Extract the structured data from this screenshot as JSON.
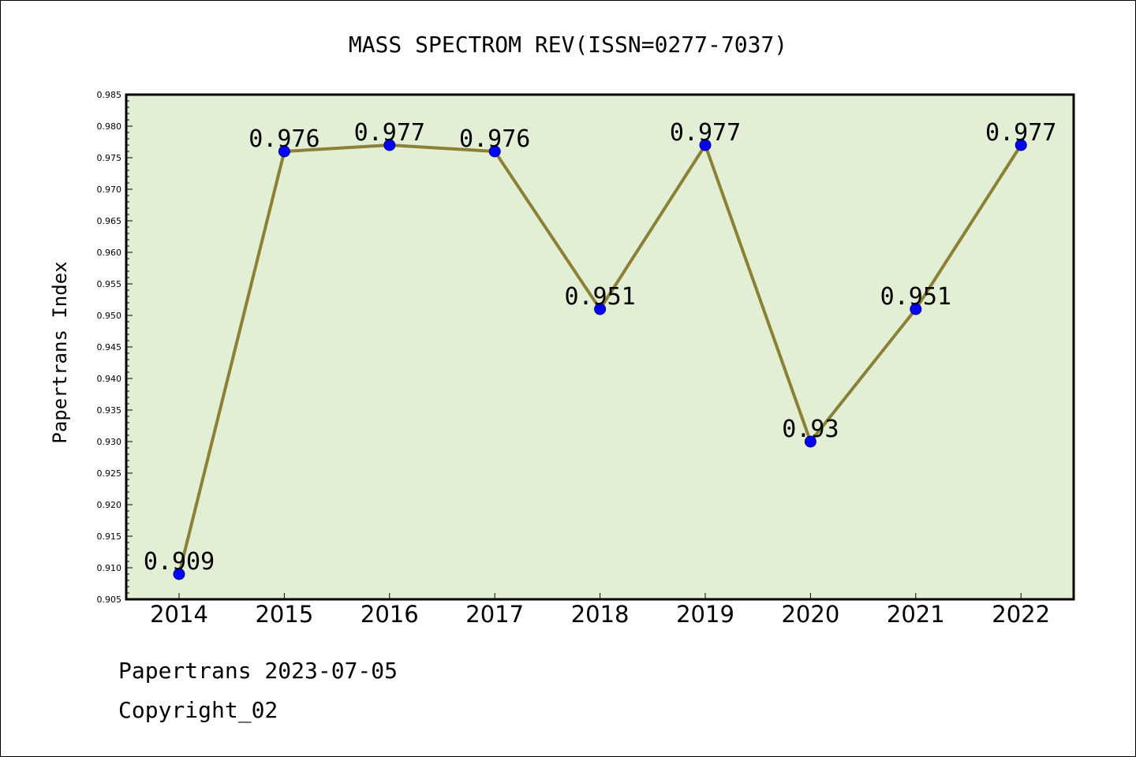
{
  "chart_data": {
    "type": "line",
    "title": "MASS SPECTROM REV(ISSN=0277-7037)",
    "ylabel": "Papertrans Index",
    "xlabel": "",
    "categories": [
      "2014",
      "2015",
      "2016",
      "2017",
      "2018",
      "2019",
      "2020",
      "2021",
      "2022"
    ],
    "series": [
      {
        "values": [
          0.909,
          0.976,
          0.977,
          0.976,
          0.951,
          0.977,
          0.93,
          0.951,
          0.977
        ]
      }
    ],
    "data_labels": [
      "0.909",
      "0.976",
      "0.977",
      "0.976",
      "0.951",
      "0.977",
      "0.93",
      "0.951",
      "0.977"
    ],
    "ylim": [
      0.905,
      0.985
    ],
    "yticks": [
      "0.905",
      "0.910",
      "0.915",
      "0.920",
      "0.925",
      "0.930",
      "0.935",
      "0.940",
      "0.945",
      "0.950",
      "0.955",
      "0.960",
      "0.965",
      "0.970",
      "0.975",
      "0.980",
      "0.985"
    ],
    "grid": false,
    "legend": "none",
    "colors": {
      "line": "#8b8035",
      "marker": "#0000ff",
      "plot_background": "#e2efd5",
      "axis": "#000000"
    }
  },
  "footer": {
    "line1": "Papertrans 2023-07-05",
    "line2": "Copyright_02"
  }
}
